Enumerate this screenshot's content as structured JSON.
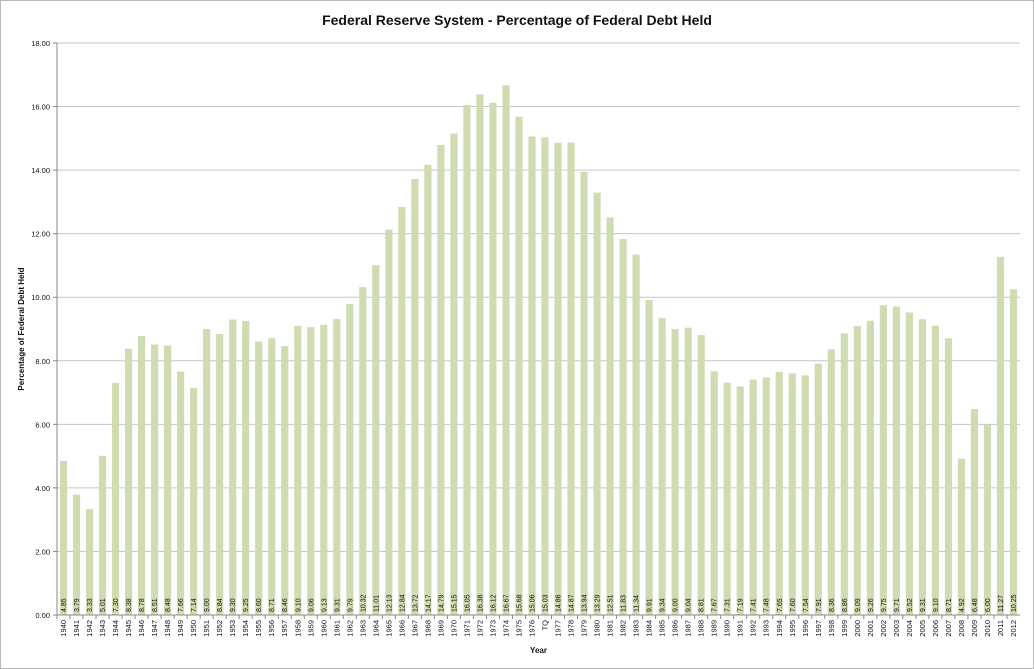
{
  "chart_data": {
    "type": "bar",
    "title": "Federal Reserve System - Percentage of Federal Debt Held",
    "xlabel": "Year",
    "ylabel": "Percentage of Federal Debt Held",
    "ylim": [
      0,
      18
    ],
    "yticks": [
      "0.00",
      "2.00",
      "4.00",
      "6.00",
      "8.00",
      "10.00",
      "12.00",
      "14.00",
      "16.00",
      "18.00"
    ],
    "grid": true,
    "bar_color": "#cfdcb2",
    "categories": [
      "1940",
      "1941",
      "1942",
      "1943",
      "1944",
      "1945",
      "1946",
      "1947",
      "1948",
      "1949",
      "1950",
      "1951",
      "1952",
      "1953",
      "1954",
      "1955",
      "1956",
      "1957",
      "1958",
      "1959",
      "1960",
      "1961",
      "1962",
      "1963",
      "1964",
      "1965",
      "1966",
      "1967",
      "1968",
      "1969",
      "1970",
      "1971",
      "1972",
      "1973",
      "1974",
      "1975",
      "1976",
      "TQ",
      "1977",
      "1978",
      "1979",
      "1980",
      "1981",
      "1982",
      "1983",
      "1984",
      "1985",
      "1986",
      "1987",
      "1988",
      "1989",
      "1990",
      "1991",
      "1992",
      "1993",
      "1994",
      "1995",
      "1996",
      "1997",
      "1998",
      "1999",
      "2000",
      "2001",
      "2002",
      "2003",
      "2004",
      "2005",
      "2006",
      "2007",
      "2008",
      "2009",
      "2010",
      "2011",
      "2012"
    ],
    "values": [
      4.85,
      3.79,
      3.33,
      5.01,
      7.3,
      8.38,
      8.78,
      8.51,
      8.48,
      7.66,
      7.14,
      9.0,
      8.84,
      9.3,
      9.25,
      8.6,
      8.71,
      8.46,
      9.1,
      9.06,
      9.13,
      9.31,
      9.79,
      10.32,
      11.01,
      12.13,
      12.84,
      13.72,
      14.17,
      14.79,
      15.15,
      16.05,
      16.38,
      16.12,
      16.67,
      15.68,
      15.06,
      15.03,
      14.86,
      14.87,
      13.94,
      13.29,
      12.51,
      11.83,
      11.34,
      9.91,
      9.34,
      9.0,
      9.04,
      8.81,
      7.67,
      7.31,
      7.19,
      7.41,
      7.48,
      7.65,
      7.6,
      7.54,
      7.91,
      8.36,
      8.86,
      9.09,
      9.26,
      9.75,
      9.71,
      9.52,
      9.31,
      9.1,
      8.71,
      4.92,
      6.48,
      6.0,
      11.27,
      10.25
    ],
    "data_labels": [
      "4.85",
      "3.79",
      "3.33",
      "5.01",
      "7.30",
      "8.38",
      "8.78",
      "8.51",
      "8.48",
      "7.66",
      "7.14",
      "9.00",
      "8.84",
      "9.30",
      "9.25",
      "8.60",
      "8.71",
      "8.46",
      "9.10",
      "9.06",
      "9.13",
      "9.31",
      "9.79",
      "10.32",
      "11.01",
      "12.13",
      "12.84",
      "13.72",
      "14.17",
      "14.79",
      "15.15",
      "16.05",
      "16.38",
      "16.12",
      "16.67",
      "15.68",
      "15.06",
      "15.03",
      "14.86",
      "14.87",
      "13.94",
      "13.29",
      "12.51",
      "11.83",
      "11.34",
      "9.91",
      "9.34",
      "9.00",
      "9.04",
      "8.81",
      "7.67",
      "7.31",
      "7.19",
      "7.41",
      "7.48",
      "7.65",
      "7.60",
      "7.54",
      "7.91",
      "8.36",
      "8.86",
      "9.09",
      "9.26",
      "9.75",
      "9.71",
      "9.52",
      "9.31",
      "9.10",
      "8.71",
      "4.92",
      "6.48",
      "6.00",
      "11.27",
      "10.25"
    ]
  }
}
